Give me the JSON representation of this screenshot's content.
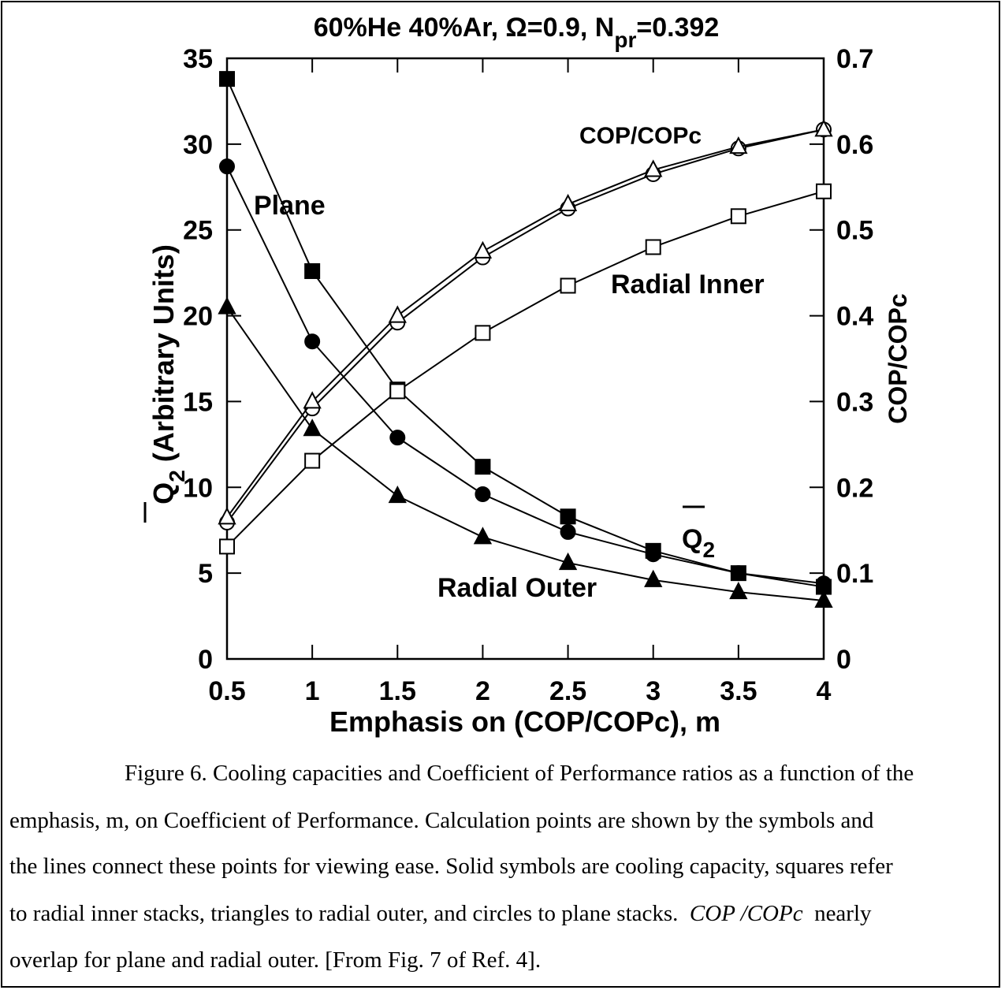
{
  "chart_data": {
    "type": "line",
    "title_parts": [
      "60%He 40%Ar, Ω=0.9, N",
      "pr",
      "=0.392"
    ],
    "x_label": "Emphasis on (COP/COPc), m",
    "y_label_parts": [
      "Q",
      "2",
      " (Arbitrary Units)"
    ],
    "y2_label": "COP/COPc",
    "x": [
      0.5,
      1,
      1.5,
      2,
      2.5,
      3,
      3.5,
      4
    ],
    "xlim": [
      0.5,
      4
    ],
    "xticks": [
      0.5,
      1,
      1.5,
      2,
      2.5,
      3,
      3.5,
      4
    ],
    "ylim": [
      0,
      35
    ],
    "yticks": [
      0,
      5,
      10,
      15,
      20,
      25,
      30,
      35
    ],
    "y2lim": [
      0,
      0.7
    ],
    "y2ticks": [
      0,
      0.1,
      0.2,
      0.3,
      0.4,
      0.5,
      0.6,
      0.7
    ],
    "series": [
      {
        "color": "#000000",
        "marker": "square",
        "filled": true,
        "values": [
          33.8,
          22.6,
          15.7,
          11.2,
          8.3,
          6.3,
          5.0,
          4.2
        ]
      },
      {
        "color": "#000000",
        "marker": "circle",
        "filled": true,
        "values": [
          28.7,
          18.5,
          12.9,
          9.6,
          7.4,
          6.1,
          5.0,
          4.4
        ]
      },
      {
        "color": "#000000",
        "marker": "triangle",
        "filled": true,
        "values": [
          20.5,
          13.4,
          9.5,
          7.1,
          5.6,
          4.6,
          3.9,
          3.4
        ]
      },
      {
        "color": "#000000",
        "marker": "square",
        "filled": false,
        "axis": "y2",
        "values": [
          0.131,
          0.231,
          0.312,
          0.38,
          0.435,
          0.48,
          0.516,
          0.545
        ]
      },
      {
        "color": "#000000",
        "marker": "circle",
        "filled": false,
        "axis": "y2",
        "values": [
          0.159,
          0.292,
          0.392,
          0.468,
          0.525,
          0.565,
          0.595,
          0.617
        ]
      },
      {
        "color": "#000000",
        "marker": "triangle",
        "filled": false,
        "axis": "y2",
        "values": [
          0.165,
          0.3,
          0.4,
          0.475,
          0.53,
          0.57,
          0.597,
          0.617
        ]
      }
    ],
    "annotations": [
      "Plane",
      "Radial Inner",
      "Radial Outer",
      "COP/COPc"
    ],
    "q_annotation_parts": [
      "Q",
      "2"
    ]
  },
  "caption": {
    "lines": [
      [
        "Figure 6.  Cooling capacities and Coefficient of Performance ratios as a function of the"
      ],
      [
        "emphasis, m, on Coefficient of Performance.  Calculation points are shown by the symbols and"
      ],
      [
        "the lines connect these points for viewing ease.  Solid symbols are cooling capacity, squares refer"
      ],
      [
        "to radial inner stacks, triangles to radial outer, and circles to plane stacks.  ",
        "COP /COPc",
        "  nearly"
      ],
      [
        "overlap for plane and radial outer.  [From Fig. 7 of Ref. 4]."
      ]
    ]
  }
}
